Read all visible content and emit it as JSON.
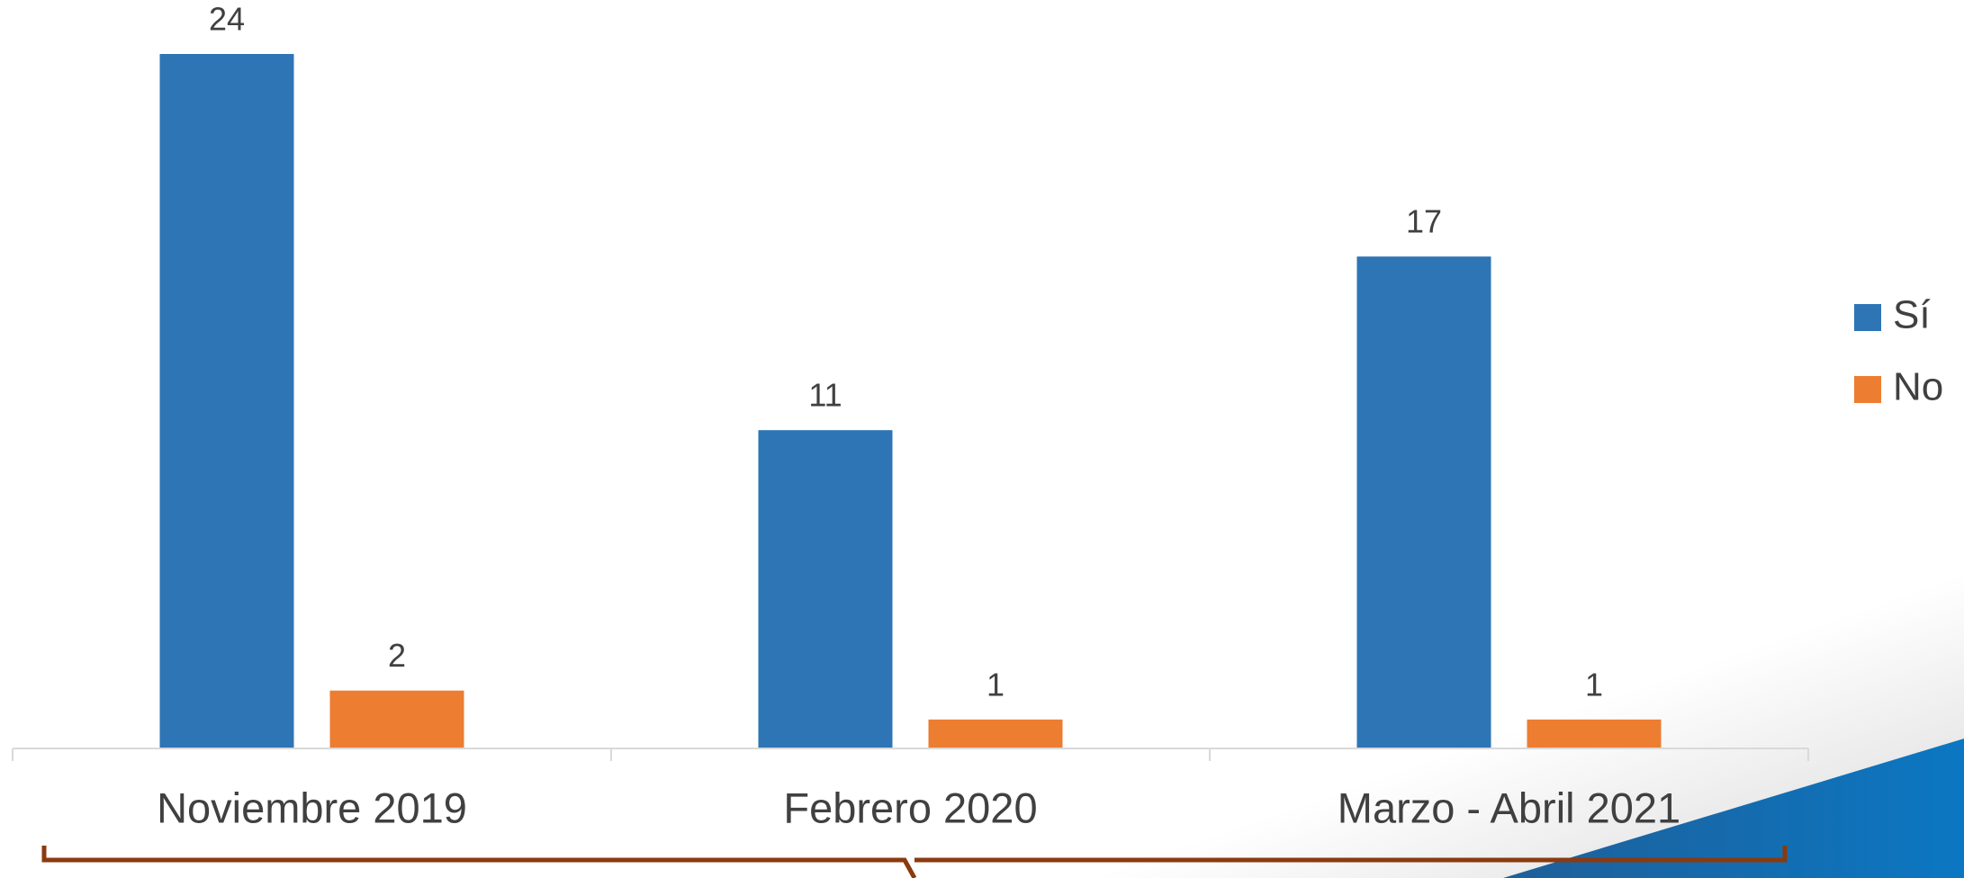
{
  "chart_data": {
    "type": "bar",
    "categories": [
      "Noviembre 2019",
      "Febrero 2020",
      "Marzo - Abril 2021"
    ],
    "series": [
      {
        "name": "Sí",
        "color": "#2e75b6",
        "values": [
          24,
          11,
          17
        ]
      },
      {
        "name": "No",
        "color": "#ed7d31",
        "values": [
          2,
          1,
          1
        ]
      }
    ],
    "ylim": [
      0,
      24
    ],
    "legend": "right"
  }
}
